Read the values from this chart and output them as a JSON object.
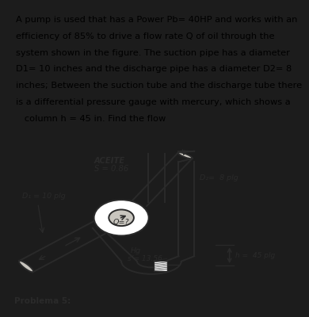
{
  "text_lines": [
    "A pump is used that has a Power Pb= 40HP and works with an",
    "efficiency of 85% to drive a flow rate Q of oil through the",
    "system shown in the figure. The suction pipe has a diameter",
    "D1= 10 inches and the discharge pipe has a diameter D2= 8",
    "inches; Between the suction tube and the discharge tube there",
    "is a differential pressure gauge with mercury, which shows a",
    "   column h = 45 in. Find the flow"
  ],
  "text_bg": "#959595",
  "diagram_bg": "#d8d5ce",
  "outer_bg": "#1c1c1c",
  "label_aceite": "ACEITE",
  "label_s": "S = 0.86",
  "label_d1": "D₁ = 10 plg",
  "label_d2": "D₂=  8 plg",
  "label_q": "Q=?",
  "label_hg": "Hg",
  "label_s2": "s’= 13.56",
  "label_h": "h =  45 plg",
  "label_problema": "Problema 5:",
  "text_fontsize": 8.2,
  "diagram_fontsize": 7.0,
  "dark": "#2a2a2a",
  "pipe_fill": "#c8c5be",
  "lw_pipe": 1.4
}
